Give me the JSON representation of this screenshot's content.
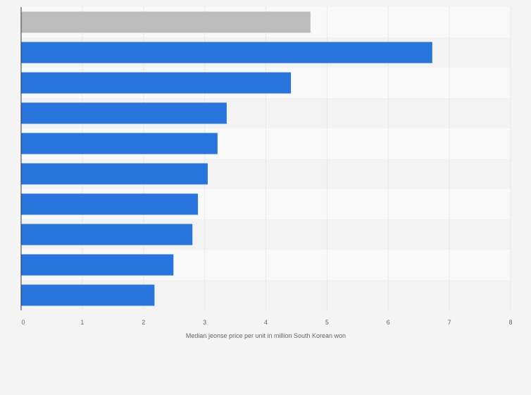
{
  "chart_data": {
    "type": "bar",
    "orientation": "horizontal",
    "categories": [
      "",
      "",
      "",
      "",
      "",
      "",
      "",
      "",
      "",
      ""
    ],
    "values": [
      4.73,
      6.72,
      4.41,
      3.36,
      3.21,
      3.05,
      2.89,
      2.8,
      2.49,
      2.18
    ],
    "highlight_index": 0,
    "title": "",
    "xlabel": "Median jeonse price per unit in million South Korean won",
    "ylabel": "",
    "xlim": [
      0,
      8
    ],
    "xticks": [
      0,
      1,
      2,
      3,
      4,
      5,
      6,
      7,
      8
    ],
    "grid": true,
    "legend": "none"
  },
  "colors": {
    "bar": "#2876dd",
    "highlight_bar": "#bdbdbd",
    "band_light": "#f9f9f9",
    "band_dark": "#f3f3f3",
    "gridline": "#dedede",
    "axis": "#333333"
  }
}
